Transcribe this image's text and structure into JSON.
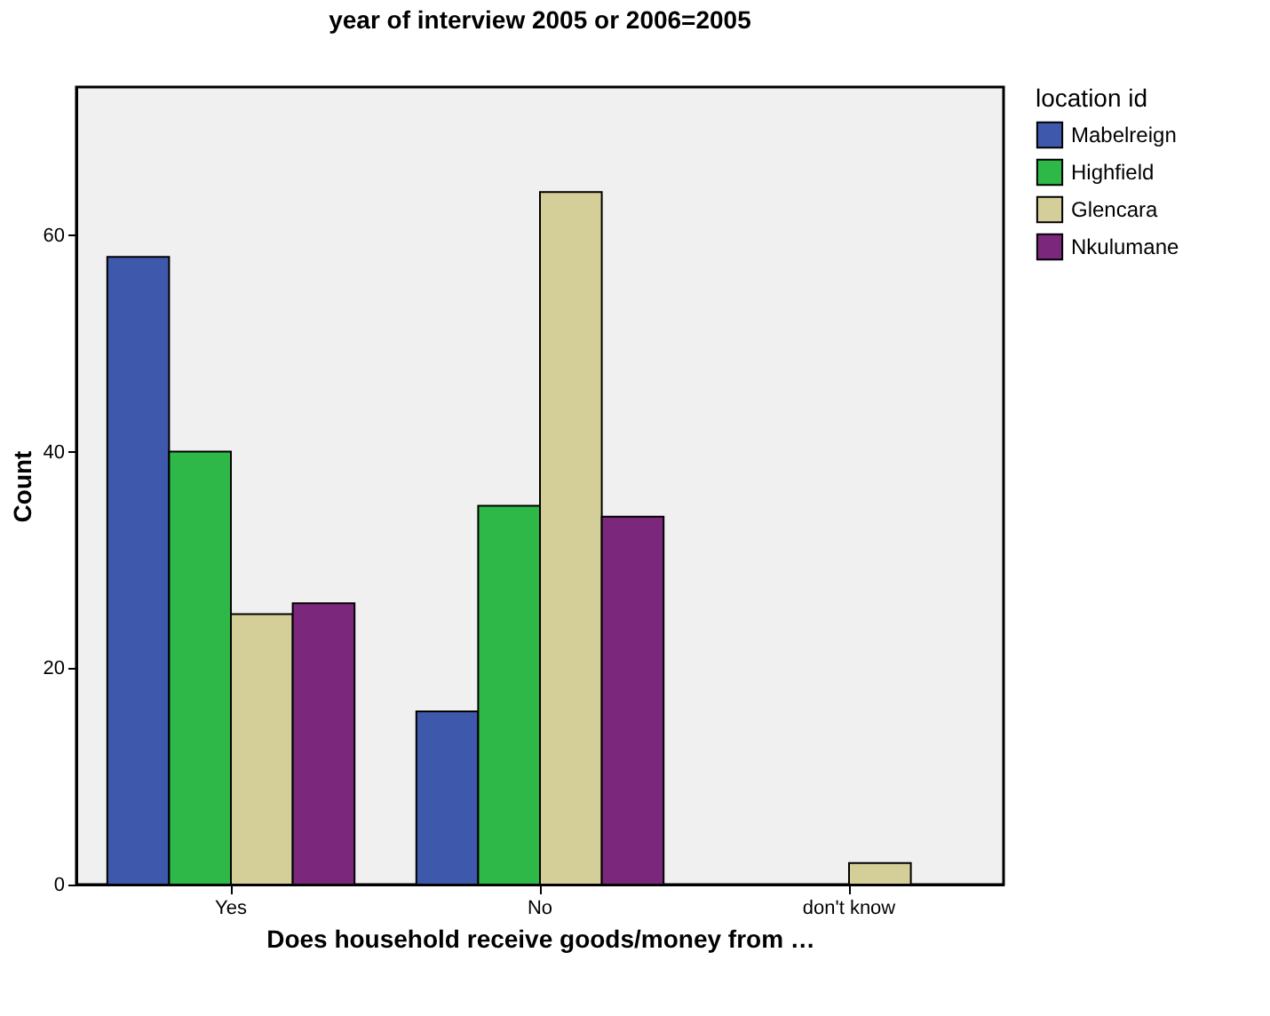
{
  "chart_data": {
    "type": "bar",
    "title": "year of interview 2005 or 2006=2005",
    "xlabel": "Does household receive goods/money from …",
    "ylabel": "Count",
    "legend_title": "location id",
    "categories": [
      "Yes",
      "No",
      "don't know"
    ],
    "series": [
      {
        "name": "Mabelreign",
        "color": "#3e58ac",
        "values": [
          58,
          16,
          null
        ]
      },
      {
        "name": "Highfield",
        "color": "#2eb848",
        "values": [
          40,
          35,
          null
        ]
      },
      {
        "name": "Glencara",
        "color": "#d4cf98",
        "values": [
          25,
          64,
          2
        ]
      },
      {
        "name": "Nkulumane",
        "color": "#7b287c",
        "values": [
          26,
          34,
          null
        ]
      }
    ],
    "ylim": [
      0,
      73.7
    ],
    "yticks": [
      0,
      20,
      40,
      60
    ],
    "grid": false,
    "legend": "top right"
  }
}
